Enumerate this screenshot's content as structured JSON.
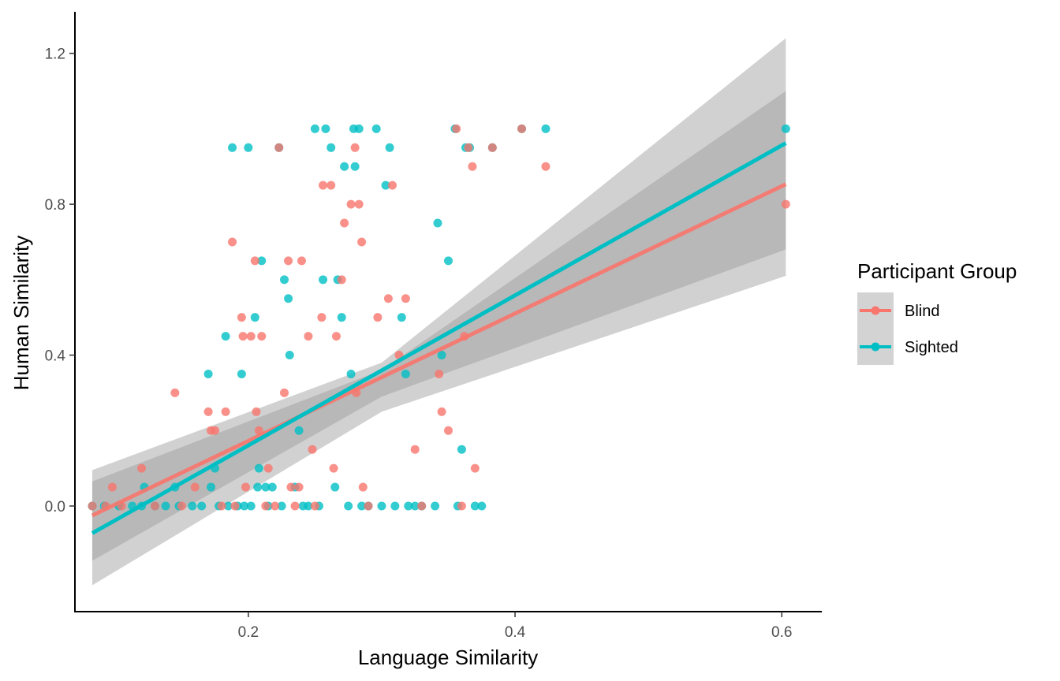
{
  "chart_data": {
    "type": "scatter",
    "xlabel": "Language Similarity",
    "ylabel": "Human Similarity",
    "xlim": [
      0.07,
      0.63
    ],
    "ylim": [
      -0.28,
      1.31
    ],
    "xticks": [
      0.2,
      0.4,
      0.6
    ],
    "yticks": [
      0.0,
      0.4,
      0.8,
      1.2
    ],
    "xtick_labels": [
      "0.2",
      "0.4",
      "0.6"
    ],
    "ytick_labels": [
      "0.0",
      "0.4",
      "0.8",
      "1.2"
    ],
    "grid": false,
    "legend": {
      "title": "Participant Group",
      "position": "right"
    },
    "series": [
      {
        "name": "Blind",
        "color": "#F8766D",
        "fit": {
          "x": [
            0.083,
            0.603
          ],
          "y": [
            -0.025,
            0.853
          ]
        },
        "ci_band": {
          "x": [
            0.083,
            0.3,
            0.603
          ],
          "lower": [
            -0.145,
            0.29,
            0.68
          ],
          "upper": [
            0.065,
            0.36,
            1.1
          ]
        },
        "points": [
          [
            0.083,
            0
          ],
          [
            0.093,
            0
          ],
          [
            0.098,
            0.05
          ],
          [
            0.105,
            0
          ],
          [
            0.12,
            0.1
          ],
          [
            0.13,
            0
          ],
          [
            0.145,
            0.3
          ],
          [
            0.15,
            0
          ],
          [
            0.16,
            0.05
          ],
          [
            0.17,
            0.25
          ],
          [
            0.172,
            0.2
          ],
          [
            0.175,
            0.2
          ],
          [
            0.18,
            0
          ],
          [
            0.183,
            0.25
          ],
          [
            0.188,
            0.7
          ],
          [
            0.19,
            0
          ],
          [
            0.195,
            0.5
          ],
          [
            0.196,
            0.45
          ],
          [
            0.198,
            0.05
          ],
          [
            0.202,
            0.45
          ],
          [
            0.205,
            0.65
          ],
          [
            0.206,
            0.25
          ],
          [
            0.208,
            0.2
          ],
          [
            0.21,
            0.45
          ],
          [
            0.213,
            0
          ],
          [
            0.215,
            0.1
          ],
          [
            0.22,
            0
          ],
          [
            0.223,
            0.95
          ],
          [
            0.227,
            0.3
          ],
          [
            0.23,
            0.65
          ],
          [
            0.232,
            0.05
          ],
          [
            0.235,
            0
          ],
          [
            0.238,
            0.05
          ],
          [
            0.24,
            0.65
          ],
          [
            0.245,
            0.45
          ],
          [
            0.248,
            0.15
          ],
          [
            0.25,
            0
          ],
          [
            0.255,
            0.5
          ],
          [
            0.256,
            0.85
          ],
          [
            0.262,
            0.85
          ],
          [
            0.264,
            0.1
          ],
          [
            0.266,
            0.45
          ],
          [
            0.27,
            0.6
          ],
          [
            0.272,
            0.75
          ],
          [
            0.277,
            0.8
          ],
          [
            0.28,
            0.95
          ],
          [
            0.281,
            0.3
          ],
          [
            0.283,
            0.8
          ],
          [
            0.285,
            0.7
          ],
          [
            0.286,
            0.05
          ],
          [
            0.29,
            0
          ],
          [
            0.297,
            0.5
          ],
          [
            0.305,
            0.55
          ],
          [
            0.308,
            0.85
          ],
          [
            0.313,
            0.4
          ],
          [
            0.318,
            0.55
          ],
          [
            0.325,
            0.15
          ],
          [
            0.33,
            0
          ],
          [
            0.343,
            0.35
          ],
          [
            0.345,
            0.25
          ],
          [
            0.35,
            0.2
          ],
          [
            0.356,
            1.0
          ],
          [
            0.36,
            0
          ],
          [
            0.362,
            0.45
          ],
          [
            0.365,
            0.95
          ],
          [
            0.368,
            0.9
          ],
          [
            0.37,
            0.1
          ],
          [
            0.383,
            0.95
          ],
          [
            0.405,
            1.0
          ],
          [
            0.423,
            0.9
          ],
          [
            0.603,
            0.8
          ]
        ]
      },
      {
        "name": "Sighted",
        "color": "#00BFC4",
        "fit": {
          "x": [
            0.083,
            0.603
          ],
          "y": [
            -0.072,
            0.962
          ]
        },
        "ci_band": {
          "x": [
            0.083,
            0.3,
            0.603
          ],
          "lower": [
            -0.21,
            0.25,
            0.61
          ],
          "upper": [
            0.095,
            0.38,
            1.24
          ]
        },
        "points": [
          [
            0.083,
            0
          ],
          [
            0.092,
            0
          ],
          [
            0.103,
            0
          ],
          [
            0.113,
            0
          ],
          [
            0.12,
            0
          ],
          [
            0.122,
            0.05
          ],
          [
            0.13,
            0
          ],
          [
            0.138,
            0
          ],
          [
            0.145,
            0.05
          ],
          [
            0.148,
            0
          ],
          [
            0.158,
            0
          ],
          [
            0.165,
            0
          ],
          [
            0.17,
            0.35
          ],
          [
            0.172,
            0.05
          ],
          [
            0.175,
            0.1
          ],
          [
            0.178,
            0
          ],
          [
            0.183,
            0.45
          ],
          [
            0.185,
            0
          ],
          [
            0.188,
            0.95
          ],
          [
            0.192,
            0
          ],
          [
            0.195,
            0.35
          ],
          [
            0.197,
            0
          ],
          [
            0.2,
            0.95
          ],
          [
            0.202,
            0
          ],
          [
            0.205,
            0.5
          ],
          [
            0.207,
            0.05
          ],
          [
            0.208,
            0.1
          ],
          [
            0.21,
            0.65
          ],
          [
            0.213,
            0.05
          ],
          [
            0.215,
            0
          ],
          [
            0.218,
            0.05
          ],
          [
            0.223,
            0.95
          ],
          [
            0.225,
            0
          ],
          [
            0.227,
            0.6
          ],
          [
            0.23,
            0.55
          ],
          [
            0.231,
            0.4
          ],
          [
            0.235,
            0.05
          ],
          [
            0.238,
            0.2
          ],
          [
            0.241,
            0
          ],
          [
            0.245,
            0
          ],
          [
            0.25,
            1.0
          ],
          [
            0.253,
            0
          ],
          [
            0.256,
            0.6
          ],
          [
            0.258,
            1.0
          ],
          [
            0.262,
            0.95
          ],
          [
            0.265,
            0.05
          ],
          [
            0.267,
            0.6
          ],
          [
            0.27,
            0.5
          ],
          [
            0.272,
            0.9
          ],
          [
            0.275,
            0
          ],
          [
            0.277,
            0.35
          ],
          [
            0.279,
            1.0
          ],
          [
            0.28,
            0.9
          ],
          [
            0.283,
            1.0
          ],
          [
            0.285,
            0
          ],
          [
            0.29,
            0
          ],
          [
            0.296,
            1.0
          ],
          [
            0.3,
            0
          ],
          [
            0.303,
            0.85
          ],
          [
            0.306,
            0.95
          ],
          [
            0.31,
            0
          ],
          [
            0.315,
            0.5
          ],
          [
            0.318,
            0.35
          ],
          [
            0.32,
            0
          ],
          [
            0.325,
            0
          ],
          [
            0.33,
            0
          ],
          [
            0.34,
            0
          ],
          [
            0.342,
            0.75
          ],
          [
            0.345,
            0.4
          ],
          [
            0.35,
            0.65
          ],
          [
            0.355,
            1.0
          ],
          [
            0.357,
            0
          ],
          [
            0.36,
            0.15
          ],
          [
            0.363,
            0.95
          ],
          [
            0.366,
            0.95
          ],
          [
            0.37,
            0
          ],
          [
            0.375,
            0
          ],
          [
            0.383,
            0.95
          ],
          [
            0.405,
            1.0
          ],
          [
            0.423,
            1.0
          ],
          [
            0.603,
            1.0
          ]
        ]
      }
    ]
  }
}
